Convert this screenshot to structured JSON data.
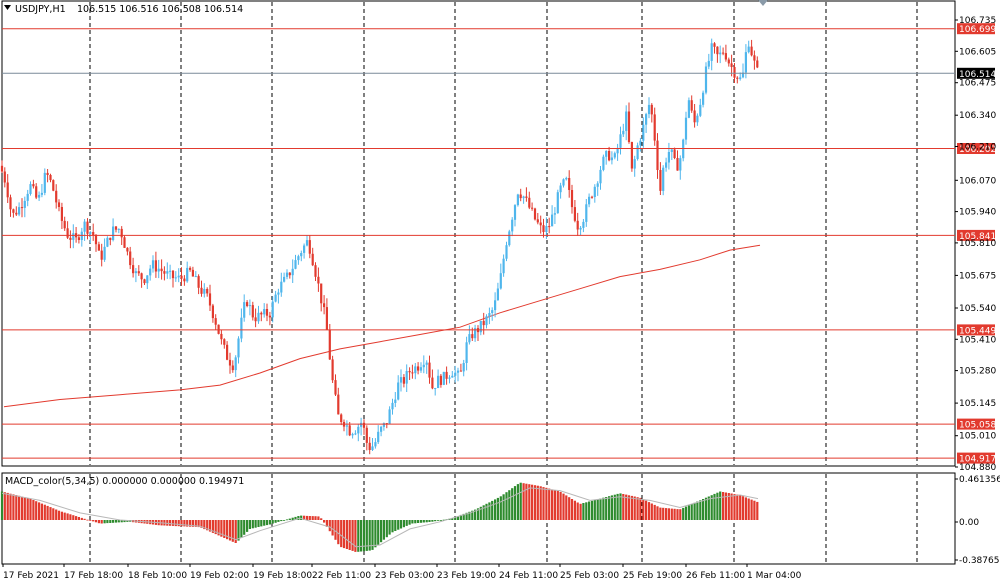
{
  "header": {
    "symbol": "USDJPY,H1",
    "ohlc": "106.515 106.516 106.508 106.514"
  },
  "indicator_label": "MACD_color(5,34,5) 0.000000 0.000000 0.194971",
  "colors": {
    "bull": "#4fb6ec",
    "bear": "#e23a2e",
    "level_line": "#e23a2e",
    "level_bg": "#e23a2e",
    "current_bg": "#000000",
    "ma": "#e23a2e",
    "hist_up": "#2e8b2e",
    "hist_down": "#e23a2e",
    "grid": "#000000"
  },
  "price_axis": {
    "ticks": [
      "106.735",
      "106.605",
      "106.475",
      "106.340",
      "106.210",
      "106.070",
      "105.940",
      "105.810",
      "105.675",
      "105.540",
      "105.410",
      "105.280",
      "105.145",
      "105.010",
      "104.880"
    ],
    "levels": [
      "106.699",
      "106.202",
      "105.841",
      "105.449",
      "105.058",
      "104.917"
    ],
    "current": "106.514"
  },
  "macd_axis": {
    "ticks": [
      "0.461356",
      "0.00",
      "-0.387657"
    ]
  },
  "time_axis": {
    "labels": [
      "17 Feb 2021",
      "17 Feb 18:00",
      "18 Feb 10:00",
      "19 Feb 02:00",
      "19 Feb 18:00",
      "22 Feb 11:00",
      "23 Feb 03:00",
      "23 Feb 19:00",
      "24 Feb 11:00",
      "25 Feb 03:00",
      "25 Feb 19:00",
      "26 Feb 11:00",
      "1 Mar 04:00"
    ]
  },
  "chart_data": {
    "type": "candlestick",
    "symbol": "USDJPY",
    "timeframe": "H1",
    "ylim": [
      104.88,
      106.76
    ],
    "macd_ylim": [
      -0.39,
      0.46
    ],
    "close_path": [
      [
        0,
        106.13
      ],
      [
        6,
        106.06
      ],
      [
        12,
        105.92
      ],
      [
        20,
        105.96
      ],
      [
        30,
        106.05
      ],
      [
        38,
        105.98
      ],
      [
        46,
        106.1
      ],
      [
        52,
        106.05
      ],
      [
        60,
        105.92
      ],
      [
        68,
        105.84
      ],
      [
        76,
        105.82
      ],
      [
        84,
        105.89
      ],
      [
        94,
        105.84
      ],
      [
        100,
        105.74
      ],
      [
        106,
        105.8
      ],
      [
        112,
        105.86
      ],
      [
        120,
        105.87
      ],
      [
        128,
        105.76
      ],
      [
        136,
        105.68
      ],
      [
        144,
        105.66
      ],
      [
        152,
        105.72
      ],
      [
        160,
        105.7
      ],
      [
        170,
        105.67
      ],
      [
        180,
        105.66
      ],
      [
        190,
        105.69
      ],
      [
        200,
        105.62
      ],
      [
        208,
        105.58
      ],
      [
        216,
        105.48
      ],
      [
        222,
        105.39
      ],
      [
        228,
        105.33
      ],
      [
        234,
        105.3
      ],
      [
        240,
        105.45
      ],
      [
        246,
        105.58
      ],
      [
        254,
        105.5
      ],
      [
        262,
        105.51
      ],
      [
        270,
        105.52
      ],
      [
        278,
        105.62
      ],
      [
        286,
        105.66
      ],
      [
        294,
        105.72
      ],
      [
        300,
        105.77
      ],
      [
        308,
        105.82
      ],
      [
        314,
        105.72
      ],
      [
        320,
        105.6
      ],
      [
        326,
        105.48
      ],
      [
        332,
        105.25
      ],
      [
        338,
        105.09
      ],
      [
        344,
        105.07
      ],
      [
        350,
        105.03
      ],
      [
        356,
        105.04
      ],
      [
        362,
        105.07
      ],
      [
        368,
        104.96
      ],
      [
        374,
        104.97
      ],
      [
        380,
        105.03
      ],
      [
        386,
        105.06
      ],
      [
        392,
        105.14
      ],
      [
        398,
        105.22
      ],
      [
        404,
        105.24
      ],
      [
        410,
        105.28
      ],
      [
        418,
        105.3
      ],
      [
        426,
        105.34
      ],
      [
        432,
        105.21
      ],
      [
        438,
        105.24
      ],
      [
        444,
        105.25
      ],
      [
        452,
        105.28
      ],
      [
        460,
        105.25
      ],
      [
        466,
        105.38
      ],
      [
        472,
        105.43
      ],
      [
        480,
        105.46
      ],
      [
        488,
        105.5
      ],
      [
        494,
        105.54
      ],
      [
        500,
        105.65
      ],
      [
        506,
        105.81
      ],
      [
        512,
        105.92
      ],
      [
        518,
        106.03
      ],
      [
        524,
        106.0
      ],
      [
        530,
        105.95
      ],
      [
        536,
        105.9
      ],
      [
        542,
        105.86
      ],
      [
        548,
        105.87
      ],
      [
        554,
        105.94
      ],
      [
        560,
        106.03
      ],
      [
        566,
        106.07
      ],
      [
        572,
        105.96
      ],
      [
        578,
        105.88
      ],
      [
        584,
        105.92
      ],
      [
        590,
        106.0
      ],
      [
        596,
        106.06
      ],
      [
        602,
        106.14
      ],
      [
        608,
        106.18
      ],
      [
        614,
        106.15
      ],
      [
        620,
        106.24
      ],
      [
        626,
        106.34
      ],
      [
        632,
        106.1
      ],
      [
        638,
        106.22
      ],
      [
        644,
        106.3
      ],
      [
        650,
        106.4
      ],
      [
        656,
        106.2
      ],
      [
        660,
        106.02
      ],
      [
        664,
        106.14
      ],
      [
        670,
        106.2
      ],
      [
        676,
        106.12
      ],
      [
        682,
        106.18
      ],
      [
        688,
        106.42
      ],
      [
        694,
        106.3
      ],
      [
        700,
        106.39
      ],
      [
        706,
        106.52
      ],
      [
        712,
        106.62
      ],
      [
        718,
        106.58
      ],
      [
        724,
        106.61
      ],
      [
        730,
        106.55
      ],
      [
        736,
        106.51
      ],
      [
        742,
        106.48
      ],
      [
        748,
        106.66
      ],
      [
        754,
        106.56
      ],
      [
        758,
        106.51
      ]
    ],
    "ma_path": [
      [
        4,
        105.13
      ],
      [
        60,
        105.16
      ],
      [
        120,
        105.18
      ],
      [
        180,
        105.2
      ],
      [
        220,
        105.22
      ],
      [
        260,
        105.27
      ],
      [
        300,
        105.33
      ],
      [
        340,
        105.37
      ],
      [
        380,
        105.4
      ],
      [
        420,
        105.43
      ],
      [
        460,
        105.46
      ],
      [
        500,
        105.52
      ],
      [
        540,
        105.57
      ],
      [
        580,
        105.62
      ],
      [
        620,
        105.67
      ],
      [
        660,
        105.7
      ],
      [
        700,
        105.74
      ],
      [
        730,
        105.78
      ],
      [
        760,
        105.8
      ]
    ],
    "macd_path": [
      [
        2,
        0.32
      ],
      [
        30,
        0.24
      ],
      [
        60,
        0.1
      ],
      [
        100,
        -0.04
      ],
      [
        130,
        -0.02
      ],
      [
        160,
        -0.06
      ],
      [
        200,
        -0.08
      ],
      [
        220,
        -0.18
      ],
      [
        236,
        -0.26
      ],
      [
        250,
        -0.1
      ],
      [
        270,
        -0.05
      ],
      [
        300,
        0.05
      ],
      [
        320,
        0.04
      ],
      [
        340,
        -0.3
      ],
      [
        356,
        -0.36
      ],
      [
        372,
        -0.34
      ],
      [
        392,
        -0.14
      ],
      [
        412,
        -0.04
      ],
      [
        432,
        -0.02
      ],
      [
        452,
        0.02
      ],
      [
        476,
        0.12
      ],
      [
        500,
        0.26
      ],
      [
        520,
        0.42
      ],
      [
        540,
        0.38
      ],
      [
        560,
        0.32
      ],
      [
        580,
        0.18
      ],
      [
        600,
        0.24
      ],
      [
        620,
        0.3
      ],
      [
        640,
        0.25
      ],
      [
        660,
        0.14
      ],
      [
        680,
        0.12
      ],
      [
        700,
        0.22
      ],
      [
        720,
        0.32
      ],
      [
        740,
        0.28
      ],
      [
        758,
        0.2
      ]
    ],
    "signal_path": [
      [
        2,
        0.3
      ],
      [
        40,
        0.22
      ],
      [
        80,
        0.08
      ],
      [
        120,
        0.0
      ],
      [
        160,
        -0.03
      ],
      [
        200,
        -0.07
      ],
      [
        236,
        -0.22
      ],
      [
        260,
        -0.12
      ],
      [
        300,
        0.02
      ],
      [
        330,
        -0.08
      ],
      [
        356,
        -0.3
      ],
      [
        380,
        -0.28
      ],
      [
        410,
        -0.1
      ],
      [
        440,
        -0.02
      ],
      [
        470,
        0.08
      ],
      [
        500,
        0.2
      ],
      [
        530,
        0.36
      ],
      [
        560,
        0.33
      ],
      [
        590,
        0.22
      ],
      [
        620,
        0.26
      ],
      [
        650,
        0.22
      ],
      [
        680,
        0.14
      ],
      [
        710,
        0.24
      ],
      [
        740,
        0.28
      ],
      [
        758,
        0.24
      ]
    ]
  }
}
